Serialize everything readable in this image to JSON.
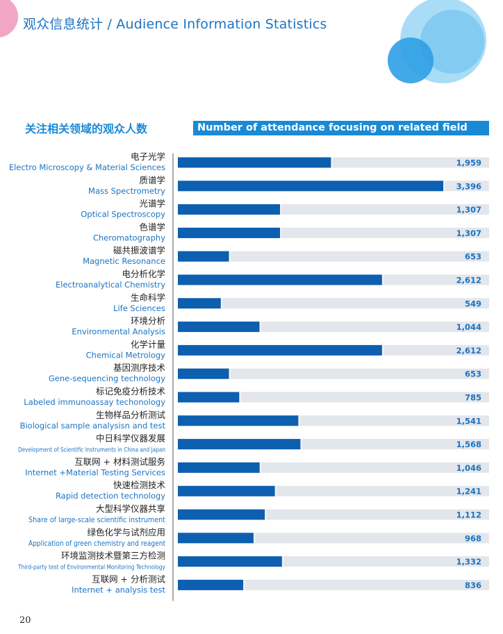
{
  "header": {
    "page_title": "观众信息统计 / Audience Information Statistics"
  },
  "section": {
    "title_cn": "关注相关领域的观众人数",
    "title_en": "Number of attendance focusing on related field"
  },
  "colors": {
    "accent": "#1b73c4",
    "bar": "#0d5fb0",
    "track": "#e3e6ea",
    "label_cn": "#222222",
    "label_en": "#1b73c4",
    "value": "#1b73c4"
  },
  "chart_data": {
    "type": "bar",
    "orientation": "horizontal",
    "xlim": [
      0,
      3400
    ],
    "grid": false,
    "categories": [
      {
        "cn": "电子光学",
        "en": "Electro Microscopy & Material Sciences"
      },
      {
        "cn": "质谱学",
        "en": "Mass Spectrometry"
      },
      {
        "cn": "光谱学",
        "en": "Optical Spectroscopy"
      },
      {
        "cn": "色谱学",
        "en": "Cheromatography"
      },
      {
        "cn": "磁共振波谱学",
        "en": "Magnetic Resonance"
      },
      {
        "cn": "电分析化学",
        "en": "Electroanalytical Chemistry"
      },
      {
        "cn": "生命科学",
        "en": "Life Sciences"
      },
      {
        "cn": "环境分析",
        "en": "Environmental Analysis"
      },
      {
        "cn": "化学计量",
        "en": "Chemical Metrology"
      },
      {
        "cn": "基因测序技术",
        "en": "Gene-sequencing technology"
      },
      {
        "cn": "标记免疫分析技术",
        "en": "Labeled immunoassay techonology"
      },
      {
        "cn": "生物样品分析测试",
        "en": "Biological sample analysisn and test"
      },
      {
        "cn": "中日科学仪器发展",
        "en": "Development of Scientific Instruments in China and Japan"
      },
      {
        "cn": "互联网 + 材料测试服务",
        "en": "Internet +Material Testing Services"
      },
      {
        "cn": "快速检测技术",
        "en": "Rapid detection technology"
      },
      {
        "cn": "大型科学仪器共享",
        "en": "Share of large-scale scientific instrument"
      },
      {
        "cn": "绿色化学与试剂应用",
        "en": "Application of green chemistry and reagent"
      },
      {
        "cn": "环境监测技术暨第三方检测",
        "en": "Third-party test of Environmental Monitoring Technology"
      },
      {
        "cn": "互联网 + 分析测试",
        "en": "Internet + analysis test"
      }
    ],
    "values": [
      1959,
      3396,
      1307,
      1307,
      653,
      2612,
      549,
      1044,
      2612,
      653,
      785,
      1541,
      1568,
      1046,
      1241,
      1112,
      968,
      1332,
      836
    ],
    "value_labels": [
      "1,959",
      "3,396",
      "1,307",
      "1,307",
      "653",
      "2,612",
      "549",
      "1,044",
      "2,612",
      "653",
      "785",
      "1,541",
      "1,568",
      "1,046",
      "1,241",
      "1,112",
      "968",
      "1,332",
      "836"
    ]
  },
  "footer": {
    "page_number": "20"
  }
}
